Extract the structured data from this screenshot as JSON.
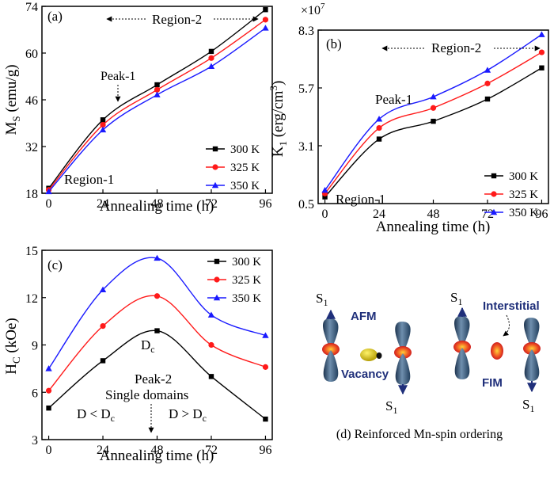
{
  "chart_data": [
    {
      "panel": "(a)",
      "type": "line",
      "x": [
        0,
        24,
        48,
        72,
        96
      ],
      "xlabel": "Annealing time (h)",
      "ylabel": [
        "M",
        "S",
        " (emu/g)"
      ],
      "xlim": [
        -3,
        99
      ],
      "ylim": [
        18,
        74
      ],
      "xticks": [
        0,
        24,
        48,
        72,
        96
      ],
      "yticks": [
        18,
        32,
        46,
        60,
        74
      ],
      "series": [
        {
          "name": "300 K",
          "color": "#000000",
          "marker": "square",
          "values": [
            19.5,
            40.0,
            50.5,
            60.5,
            73.0
          ]
        },
        {
          "name": "325 K",
          "color": "#ff1a1a",
          "marker": "circle",
          "values": [
            19.0,
            38.5,
            49.0,
            58.5,
            70.0
          ]
        },
        {
          "name": "350 K",
          "color": "#1a1aff",
          "marker": "triangle",
          "values": [
            18.5,
            37.0,
            47.5,
            56.0,
            67.5
          ]
        }
      ],
      "legend": "bottom-right",
      "annotations": [
        "Region-2",
        "Peak-1",
        "Region-1"
      ]
    },
    {
      "panel": "(b)",
      "type": "line",
      "x": [
        0,
        24,
        48,
        72,
        96
      ],
      "xlabel": "Annealing time (h)",
      "ylabel": [
        "K",
        "1",
        " (erg/cm",
        "3",
        ")"
      ],
      "multiplier": [
        "×10",
        "7"
      ],
      "xlim": [
        -3,
        99
      ],
      "ylim": [
        0.5,
        8.3
      ],
      "xticks": [
        0,
        24,
        48,
        72,
        96
      ],
      "ytick_labels": [
        "0.5",
        "3.1",
        "5.7",
        "8.3"
      ],
      "yticks": [
        0.5,
        3.1,
        5.7,
        8.3
      ],
      "series": [
        {
          "name": "300 K",
          "color": "#000000",
          "marker": "square",
          "values": [
            0.8,
            3.4,
            4.2,
            5.2,
            6.6
          ]
        },
        {
          "name": "325 K",
          "color": "#ff1a1a",
          "marker": "circle",
          "values": [
            0.95,
            3.9,
            4.8,
            5.9,
            7.3
          ]
        },
        {
          "name": "350 K",
          "color": "#1a1aff",
          "marker": "triangle",
          "values": [
            1.1,
            4.3,
            5.3,
            6.5,
            8.1
          ]
        }
      ],
      "legend": "bottom-right",
      "annotations": [
        "Region-2",
        "Peak-1",
        "Region-1"
      ]
    },
    {
      "panel": "(c)",
      "type": "line",
      "x": [
        0,
        24,
        48,
        72,
        96
      ],
      "xlabel": "Annealing time (h)",
      "ylabel": [
        "H",
        "C",
        " (kOe)"
      ],
      "xlim": [
        -3,
        99
      ],
      "ylim": [
        3,
        15
      ],
      "xticks": [
        0,
        24,
        48,
        72,
        96
      ],
      "yticks": [
        3,
        6,
        9,
        12,
        15
      ],
      "series": [
        {
          "name": "300 K",
          "color": "#000000",
          "marker": "square",
          "values": [
            5.0,
            8.0,
            9.9,
            7.0,
            4.3
          ]
        },
        {
          "name": "325 K",
          "color": "#ff1a1a",
          "marker": "circle",
          "values": [
            6.1,
            10.2,
            12.1,
            9.0,
            7.6
          ]
        },
        {
          "name": "350 K",
          "color": "#1a1aff",
          "marker": "triangle",
          "values": [
            7.5,
            12.5,
            14.5,
            10.9,
            9.6
          ]
        }
      ],
      "legend": "top-right",
      "annotations": {
        "dc": [
          "D",
          "c"
        ],
        "peak2": "Peak-2",
        "single_domains": "Single domains",
        "left_condition": [
          "D < D",
          "c"
        ],
        "right_condition": [
          "D > D",
          "c"
        ]
      }
    }
  ],
  "diagram_d": {
    "caption": "(d) Reinforced Mn-spin ordering",
    "labels": {
      "spin": [
        "S",
        "1"
      ],
      "afm": "AFM",
      "vacancy": "Vacancy",
      "interstitial": "Interstitial",
      "fim": "FIM"
    },
    "colors": {
      "label_blue": "#1f2f7a",
      "orbital": "#3d5a7a",
      "atom_red": "#e8222a",
      "vacancy_yellow": "#e3d21a"
    }
  }
}
